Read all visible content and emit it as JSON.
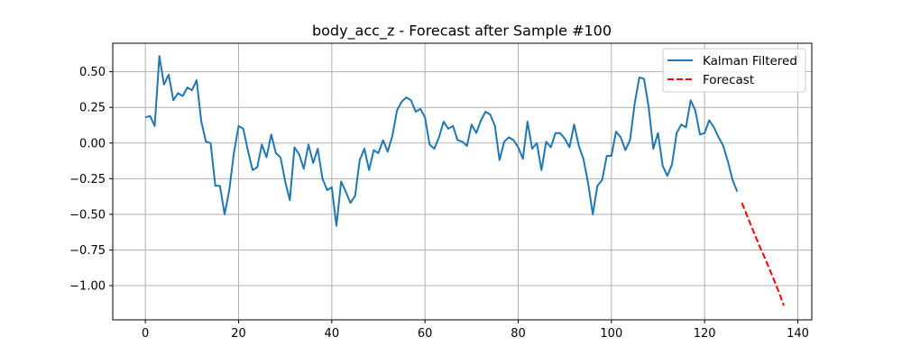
{
  "chart_data": {
    "type": "line",
    "title": "body_acc_z - Forecast after Sample #100",
    "xlabel": "",
    "ylabel": "",
    "xlim": [
      -7,
      143
    ],
    "ylim": [
      -1.24,
      0.7
    ],
    "grid": true,
    "legend_position": "top-right",
    "xticks": [
      0,
      20,
      40,
      60,
      80,
      100,
      120,
      140
    ],
    "xtick_labels": [
      "0",
      "20",
      "40",
      "60",
      "80",
      "100",
      "120",
      "140"
    ],
    "yticks": [
      0.5,
      0.25,
      0.0,
      -0.25,
      -0.5,
      -0.75,
      -1.0
    ],
    "ytick_labels": [
      "0.50",
      "0.25",
      "0.00",
      "−0.25",
      "−0.50",
      "−0.75",
      "−1.00"
    ],
    "series": [
      {
        "name": "Kalman Filtered",
        "color": "#1f77b4",
        "style": "solid",
        "x": [
          0,
          1,
          2,
          3,
          4,
          5,
          6,
          7,
          8,
          9,
          10,
          11,
          12,
          13,
          14,
          15,
          16,
          17,
          18,
          19,
          20,
          21,
          22,
          23,
          24,
          25,
          26,
          27,
          28,
          29,
          30,
          31,
          32,
          33,
          34,
          35,
          36,
          37,
          38,
          39,
          40,
          41,
          42,
          43,
          44,
          45,
          46,
          47,
          48,
          49,
          50,
          51,
          52,
          53,
          54,
          55,
          56,
          57,
          58,
          59,
          60,
          61,
          62,
          63,
          64,
          65,
          66,
          67,
          68,
          69,
          70,
          71,
          72,
          73,
          74,
          75,
          76,
          77,
          78,
          79,
          80,
          81,
          82,
          83,
          84,
          85,
          86,
          87,
          88,
          89,
          90,
          91,
          92,
          93,
          94,
          95,
          96,
          97,
          98,
          99,
          100,
          101,
          102,
          103,
          104,
          105,
          106,
          107,
          108,
          109,
          110,
          111,
          112,
          113,
          114,
          115,
          116,
          117,
          118,
          119,
          120,
          121,
          122,
          123,
          124,
          125,
          126,
          127
        ],
        "values": [
          0.18,
          0.19,
          0.12,
          0.61,
          0.41,
          0.48,
          0.3,
          0.35,
          0.33,
          0.39,
          0.37,
          0.44,
          0.15,
          0.01,
          0.0,
          -0.3,
          -0.3,
          -0.5,
          -0.33,
          -0.07,
          0.12,
          0.1,
          -0.05,
          -0.19,
          -0.17,
          -0.01,
          -0.1,
          0.06,
          -0.07,
          -0.1,
          -0.27,
          -0.4,
          -0.03,
          -0.08,
          -0.18,
          -0.01,
          -0.14,
          -0.04,
          -0.25,
          -0.33,
          -0.31,
          -0.58,
          -0.27,
          -0.34,
          -0.42,
          -0.37,
          -0.12,
          -0.04,
          -0.19,
          -0.05,
          -0.07,
          0.02,
          -0.06,
          0.05,
          0.23,
          0.29,
          0.32,
          0.3,
          0.22,
          0.24,
          0.18,
          -0.01,
          -0.04,
          0.04,
          0.15,
          0.1,
          0.12,
          0.02,
          0.01,
          -0.02,
          0.13,
          0.07,
          0.16,
          0.22,
          0.2,
          0.12,
          -0.12,
          0.01,
          0.04,
          0.02,
          -0.03,
          -0.11,
          0.15,
          -0.04,
          0.0,
          -0.19,
          0.01,
          -0.03,
          0.07,
          0.07,
          0.03,
          -0.03,
          0.13,
          -0.02,
          -0.11,
          -0.28,
          -0.5,
          -0.3,
          -0.26,
          -0.09,
          -0.09,
          0.08,
          0.04,
          -0.05,
          0.02,
          0.28,
          0.46,
          0.45,
          0.25,
          -0.04,
          0.07,
          -0.16,
          -0.23,
          -0.15,
          0.07,
          0.13,
          0.11,
          0.3,
          0.23,
          0.06,
          0.07,
          0.16,
          0.11,
          0.04,
          -0.02,
          -0.13,
          -0.26,
          -0.34
        ]
      },
      {
        "name": "Forecast",
        "color": "#ff0000",
        "style": "dashed",
        "x": [
          128,
          129,
          130,
          131,
          132,
          133,
          134,
          135,
          136,
          137
        ],
        "values": [
          -0.42,
          -0.5,
          -0.58,
          -0.66,
          -0.74,
          -0.81,
          -0.89,
          -0.97,
          -1.05,
          -1.14
        ]
      }
    ]
  }
}
